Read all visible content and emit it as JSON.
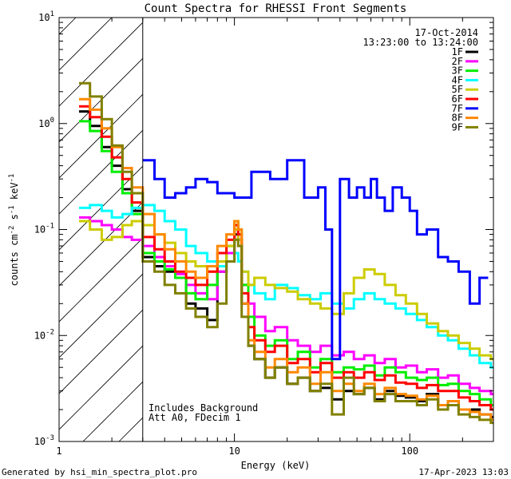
{
  "chart_data": {
    "type": "line",
    "title": "Count Spectra for RHESSI Front Segments",
    "xlabel": "Energy (keV)",
    "ylabel": "counts cm",
    "ylabel_exp1": "-2",
    "ylabel_mid": " s",
    "ylabel_exp2": "-1",
    "ylabel_unit": " keV",
    "ylabel_exp3": "-1",
    "xscale": "log",
    "yscale": "log",
    "xlim": [
      1,
      300
    ],
    "ylim": [
      0.001,
      10
    ],
    "x_ticks": [
      {
        "v": 1,
        "label": "1"
      },
      {
        "v": 10,
        "label": "10"
      },
      {
        "v": 100,
        "label": "100"
      }
    ],
    "y_ticks": [
      {
        "v": 0.001,
        "base": "10",
        "exp": "-3"
      },
      {
        "v": 0.01,
        "base": "10",
        "exp": "-2"
      },
      {
        "v": 0.1,
        "base": "10",
        "exp": "-1"
      },
      {
        "v": 1,
        "base": "10",
        "exp": "0"
      },
      {
        "v": 10,
        "base": "10",
        "exp": "1"
      }
    ],
    "hatch_region": [
      1,
      3
    ],
    "date": "17-Oct-2014",
    "time_range": "13:23:00 to 13:24:00",
    "notes": [
      "Includes Background",
      "Att A0, FDecim 1"
    ],
    "series": [
      {
        "name": "1F",
        "color": "#000000",
        "x": [
          1.3,
          1.5,
          1.75,
          2.0,
          2.3,
          2.6,
          3.0,
          3.5,
          4.0,
          4.6,
          5.3,
          6.0,
          7.0,
          8.0,
          9.0,
          10.0,
          10.5,
          11.0,
          12.0,
          13.0,
          15.0,
          17.0,
          20.0,
          23.0,
          27.0,
          31.0,
          36.0,
          42.0,
          48.0,
          55.0,
          63.0,
          72.0,
          83.0,
          95.0,
          110.0,
          125.0,
          145.0,
          165.0,
          190.0,
          220.0,
          250.0,
          290.0
        ],
        "y": [
          1.3,
          0.95,
          0.6,
          0.4,
          0.24,
          0.15,
          0.055,
          0.045,
          0.04,
          0.035,
          0.02,
          0.018,
          0.014,
          0.04,
          0.06,
          0.09,
          0.08,
          0.02,
          0.008,
          0.006,
          0.004,
          0.005,
          0.0035,
          0.004,
          0.003,
          0.0032,
          0.0025,
          0.003,
          0.0028,
          0.0032,
          0.0025,
          0.003,
          0.0027,
          0.0026,
          0.0024,
          0.0028,
          0.0022,
          0.0024,
          0.002,
          0.002,
          0.0018,
          0.0017
        ]
      },
      {
        "name": "2F",
        "color": "#ff00ff",
        "x": [
          1.3,
          1.5,
          1.75,
          2.0,
          2.3,
          2.6,
          3.0,
          3.5,
          4.0,
          4.6,
          5.3,
          6.0,
          7.0,
          8.0,
          9.0,
          10.0,
          10.5,
          11.0,
          12.0,
          13.0,
          15.0,
          17.0,
          20.0,
          23.0,
          27.0,
          31.0,
          36.0,
          42.0,
          48.0,
          55.0,
          63.0,
          72.0,
          83.0,
          95.0,
          110.0,
          125.0,
          145.0,
          165.0,
          190.0,
          220.0,
          250.0,
          290.0
        ],
        "y": [
          0.13,
          0.12,
          0.11,
          0.1,
          0.085,
          0.08,
          0.07,
          0.055,
          0.045,
          0.038,
          0.03,
          0.025,
          0.022,
          0.04,
          0.06,
          0.1,
          0.08,
          0.03,
          0.02,
          0.015,
          0.011,
          0.012,
          0.009,
          0.008,
          0.007,
          0.008,
          0.0065,
          0.007,
          0.006,
          0.0065,
          0.0055,
          0.006,
          0.005,
          0.0052,
          0.0045,
          0.0048,
          0.004,
          0.0042,
          0.0035,
          0.0032,
          0.003,
          0.0028
        ]
      },
      {
        "name": "3F",
        "color": "#00ee00",
        "x": [
          1.3,
          1.5,
          1.75,
          2.0,
          2.3,
          2.6,
          3.0,
          3.5,
          4.0,
          4.6,
          5.3,
          6.0,
          7.0,
          8.0,
          9.0,
          10.0,
          10.5,
          11.0,
          12.0,
          13.0,
          15.0,
          17.0,
          20.0,
          23.0,
          27.0,
          31.0,
          36.0,
          42.0,
          48.0,
          55.0,
          63.0,
          72.0,
          83.0,
          95.0,
          110.0,
          125.0,
          145.0,
          165.0,
          190.0,
          220.0,
          250.0,
          290.0
        ],
        "y": [
          1.05,
          0.85,
          0.55,
          0.35,
          0.22,
          0.14,
          0.06,
          0.05,
          0.042,
          0.035,
          0.025,
          0.022,
          0.03,
          0.05,
          0.07,
          0.12,
          0.1,
          0.03,
          0.015,
          0.01,
          0.008,
          0.009,
          0.006,
          0.007,
          0.005,
          0.006,
          0.0045,
          0.005,
          0.0048,
          0.0052,
          0.0042,
          0.005,
          0.0045,
          0.004,
          0.0038,
          0.004,
          0.0034,
          0.0035,
          0.003,
          0.0028,
          0.0025,
          0.0022
        ]
      },
      {
        "name": "4F",
        "color": "#00ffff",
        "x": [
          1.3,
          1.5,
          1.75,
          2.0,
          2.3,
          2.6,
          3.0,
          3.5,
          4.0,
          4.6,
          5.3,
          6.0,
          7.0,
          8.0,
          9.0,
          10.0,
          10.5,
          11.0,
          12.0,
          13.0,
          15.0,
          17.0,
          20.0,
          23.0,
          27.0,
          31.0,
          36.0,
          42.0,
          48.0,
          55.0,
          63.0,
          72.0,
          83.0,
          95.0,
          110.0,
          125.0,
          145.0,
          165.0,
          190.0,
          220.0,
          250.0,
          290.0
        ],
        "y": [
          0.16,
          0.17,
          0.15,
          0.13,
          0.14,
          0.16,
          0.17,
          0.15,
          0.12,
          0.1,
          0.07,
          0.06,
          0.05,
          0.045,
          0.05,
          0.06,
          0.05,
          0.04,
          0.03,
          0.025,
          0.022,
          0.03,
          0.028,
          0.024,
          0.022,
          0.025,
          0.02,
          0.018,
          0.022,
          0.025,
          0.022,
          0.02,
          0.018,
          0.016,
          0.014,
          0.012,
          0.01,
          0.009,
          0.0075,
          0.0065,
          0.0055,
          0.005
        ]
      },
      {
        "name": "5F",
        "color": "#cccc00",
        "x": [
          1.3,
          1.5,
          1.75,
          2.0,
          2.3,
          2.6,
          3.0,
          3.5,
          4.0,
          4.6,
          5.3,
          6.0,
          7.0,
          8.0,
          9.0,
          10.0,
          10.5,
          11.0,
          12.0,
          13.0,
          15.0,
          17.0,
          20.0,
          23.0,
          27.0,
          31.0,
          36.0,
          42.0,
          48.0,
          55.0,
          63.0,
          72.0,
          83.0,
          95.0,
          110.0,
          125.0,
          145.0,
          165.0,
          190.0,
          220.0,
          250.0,
          290.0
        ],
        "y": [
          0.12,
          0.1,
          0.08,
          0.085,
          0.11,
          0.12,
          0.11,
          0.09,
          0.075,
          0.06,
          0.05,
          0.045,
          0.04,
          0.05,
          0.07,
          0.1,
          0.08,
          0.04,
          0.03,
          0.035,
          0.03,
          0.028,
          0.026,
          0.022,
          0.02,
          0.018,
          0.016,
          0.025,
          0.035,
          0.042,
          0.038,
          0.03,
          0.024,
          0.02,
          0.016,
          0.013,
          0.011,
          0.01,
          0.0085,
          0.0075,
          0.0065,
          0.006
        ]
      },
      {
        "name": "6F",
        "color": "#ff0000",
        "x": [
          1.3,
          1.5,
          1.75,
          2.0,
          2.3,
          2.6,
          3.0,
          3.5,
          4.0,
          4.6,
          5.3,
          6.0,
          7.0,
          8.0,
          9.0,
          10.0,
          10.5,
          11.0,
          12.0,
          13.0,
          15.0,
          17.0,
          20.0,
          23.0,
          27.0,
          31.0,
          36.0,
          42.0,
          48.0,
          55.0,
          63.0,
          72.0,
          83.0,
          95.0,
          110.0,
          125.0,
          145.0,
          165.0,
          190.0,
          220.0,
          250.0,
          290.0
        ],
        "y": [
          1.45,
          1.15,
          0.75,
          0.48,
          0.3,
          0.18,
          0.085,
          0.065,
          0.05,
          0.04,
          0.035,
          0.03,
          0.04,
          0.06,
          0.08,
          0.11,
          0.09,
          0.025,
          0.012,
          0.009,
          0.007,
          0.008,
          0.0055,
          0.006,
          0.0045,
          0.0055,
          0.004,
          0.0045,
          0.004,
          0.0045,
          0.0038,
          0.0042,
          0.0036,
          0.0035,
          0.0032,
          0.0034,
          0.003,
          0.003,
          0.0026,
          0.0024,
          0.0022,
          0.002
        ]
      },
      {
        "name": "7F",
        "color": "#0000ff",
        "x": [
          3.0,
          3.5,
          4.0,
          4.6,
          5.3,
          6.0,
          7.0,
          8.0,
          10.0,
          12.5,
          16.0,
          20.0,
          25.0,
          30.0,
          33.0,
          36.0,
          40.0,
          45.0,
          50.0,
          55.0,
          60.0,
          65.0,
          72.0,
          80.0,
          90.0,
          100.0,
          110.0,
          125.0,
          145.0,
          165.0,
          190.0,
          220.0,
          250.0
        ],
        "y": [
          0.45,
          0.3,
          0.2,
          0.22,
          0.25,
          0.3,
          0.28,
          0.22,
          0.2,
          0.35,
          0.3,
          0.45,
          0.2,
          0.25,
          0.1,
          0.006,
          0.3,
          0.2,
          0.25,
          0.2,
          0.3,
          0.2,
          0.15,
          0.25,
          0.2,
          0.15,
          0.09,
          0.1,
          0.055,
          0.05,
          0.04,
          0.02,
          0.035
        ]
      },
      {
        "name": "8F",
        "color": "#ff8800",
        "x": [
          1.3,
          1.5,
          1.75,
          2.0,
          2.3,
          2.6,
          3.0,
          3.5,
          4.0,
          4.6,
          5.3,
          6.0,
          7.0,
          8.0,
          9.0,
          10.0,
          10.5,
          11.0,
          12.0,
          13.0,
          15.0,
          17.0,
          20.0,
          23.0,
          27.0,
          31.0,
          36.0,
          42.0,
          48.0,
          55.0,
          63.0,
          72.0,
          83.0,
          95.0,
          110.0,
          125.0,
          145.0,
          165.0,
          190.0,
          220.0,
          250.0,
          290.0
        ],
        "y": [
          1.7,
          1.35,
          0.9,
          0.6,
          0.38,
          0.25,
          0.14,
          0.09,
          0.065,
          0.05,
          0.04,
          0.035,
          0.045,
          0.07,
          0.09,
          0.12,
          0.1,
          0.02,
          0.009,
          0.007,
          0.005,
          0.006,
          0.0045,
          0.005,
          0.0035,
          0.0045,
          0.003,
          0.0035,
          0.003,
          0.0035,
          0.0028,
          0.0032,
          0.0028,
          0.0027,
          0.0025,
          0.0027,
          0.0022,
          0.0024,
          0.002,
          0.0019,
          0.0018,
          0.0016
        ]
      },
      {
        "name": "9F",
        "color": "#808000",
        "x": [
          1.3,
          1.5,
          1.75,
          2.0,
          2.3,
          2.6,
          3.0,
          3.5,
          4.0,
          4.6,
          5.3,
          6.0,
          7.0,
          8.0,
          9.0,
          10.0,
          10.5,
          11.0,
          12.0,
          13.0,
          15.0,
          17.0,
          20.0,
          23.0,
          27.0,
          31.0,
          36.0,
          42.0,
          48.0,
          55.0,
          63.0,
          72.0,
          83.0,
          95.0,
          110.0,
          125.0,
          145.0,
          165.0,
          190.0,
          220.0,
          250.0,
          290.0
        ],
        "y": [
          2.4,
          1.8,
          1.1,
          0.62,
          0.35,
          0.22,
          0.05,
          0.04,
          0.03,
          0.025,
          0.018,
          0.015,
          0.012,
          0.02,
          0.05,
          0.08,
          0.07,
          0.015,
          0.008,
          0.006,
          0.004,
          0.005,
          0.0035,
          0.004,
          0.003,
          0.0035,
          0.0018,
          0.004,
          0.0028,
          0.0032,
          0.0024,
          0.0028,
          0.0024,
          0.0024,
          0.0022,
          0.0025,
          0.002,
          0.0022,
          0.0018,
          0.0017,
          0.0016,
          0.0015
        ]
      }
    ]
  },
  "footer": {
    "generated_by": "Generated by hsi_min_spectra_plot.pro",
    "timestamp": "17-Apr-2023 13:03"
  }
}
